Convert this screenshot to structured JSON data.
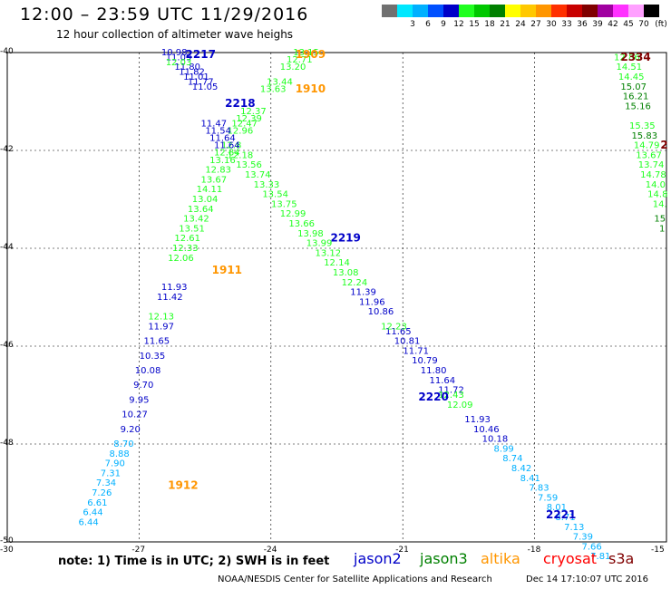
{
  "header": {
    "title": "12:00 – 23:59 UTC 11/29/2016",
    "subtitle": "12 hour collection of altimeter wave heighs"
  },
  "scale": {
    "unit_label": "(ft)",
    "items": [
      {
        "color": "#707070",
        "label": ""
      },
      {
        "color": "#00e8ff",
        "label": "3"
      },
      {
        "color": "#00b0ff",
        "label": "6"
      },
      {
        "color": "#0050ff",
        "label": "9"
      },
      {
        "color": "#0000c8",
        "label": "12"
      },
      {
        "color": "#20ff20",
        "label": "15"
      },
      {
        "color": "#00c800",
        "label": "18"
      },
      {
        "color": "#008000",
        "label": "21"
      },
      {
        "color": "#ffff00",
        "label": "24"
      },
      {
        "color": "#ffc800",
        "label": "27"
      },
      {
        "color": "#ff9600",
        "label": "30"
      },
      {
        "color": "#ff3000",
        "label": "33"
      },
      {
        "color": "#c80000",
        "label": "36"
      },
      {
        "color": "#800000",
        "label": "39"
      },
      {
        "color": "#a000a0",
        "label": "42"
      },
      {
        "color": "#ff30ff",
        "label": "45"
      },
      {
        "color": "#ffa0ff",
        "label": "70"
      },
      {
        "color": "#000000",
        "label": ""
      }
    ]
  },
  "axes": {
    "lat_labels": [
      "-40",
      "-42",
      "-44",
      "-46",
      "-48",
      "-50"
    ],
    "lon_labels": [
      "-30",
      "-27",
      "-24",
      "-21",
      "-18",
      "-15"
    ]
  },
  "map_data": {
    "lon_range": [
      -30,
      -15
    ],
    "lat_range": [
      -50,
      -40
    ],
    "pass_labels": [
      {
        "text": "2217",
        "lon": -25.6,
        "lat": -40.05,
        "color": "#0000c8"
      },
      {
        "text": "1909",
        "lon": -23.1,
        "lat": -40.05,
        "color": "#ff9600"
      },
      {
        "text": "1910",
        "lon": -23.1,
        "lat": -40.75,
        "color": "#ff9600"
      },
      {
        "text": "2218",
        "lon": -24.7,
        "lat": -41.05,
        "color": "#0000c8"
      },
      {
        "text": "2219",
        "lon": -22.3,
        "lat": -43.8,
        "color": "#0000c8"
      },
      {
        "text": "1911",
        "lon": -25.0,
        "lat": -44.45,
        "color": "#ff9600"
      },
      {
        "text": "2220",
        "lon": -20.3,
        "lat": -47.05,
        "color": "#0000c8"
      },
      {
        "text": "1912",
        "lon": -26.0,
        "lat": -48.85,
        "color": "#ff9600"
      },
      {
        "text": "2221",
        "lon": -17.4,
        "lat": -49.45,
        "color": "#0000c8"
      },
      {
        "text": "2334",
        "lon": -15.7,
        "lat": -40.1,
        "color": "#800000"
      },
      {
        "text": "2",
        "lon": -15.05,
        "lat": -41.9,
        "color": "#800000"
      }
    ],
    "tracks": [
      {
        "color": "#0000c8",
        "lon": [
          -26.2,
          -26.1,
          -26.0,
          -25.9,
          -25.8,
          -25.7,
          -25.6,
          -25.5,
          -25.4,
          -25.3,
          -25.2
        ],
        "lat": [
          -40.0,
          -40.1,
          -40.2,
          -40.3,
          -40.4,
          -40.5,
          -40.6,
          -40.7,
          -40.8,
          -40.9,
          -41.0
        ],
        "values": [
          "10.98",
          "11.09",
          "",
          "11.80",
          "11.82",
          "11.01",
          "11.77",
          "11.05",
          "",
          "",
          ""
        ]
      },
      {
        "color": "#20ff20",
        "lon": [
          -26.1,
          -26.0
        ],
        "lat": [
          -40.2,
          -40.3
        ],
        "values": [
          "12.03",
          ""
        ]
      },
      {
        "color": "#20ff20",
        "lon": [
          -23.2,
          -23.35,
          -23.5,
          -23.65,
          -23.8,
          -23.95,
          -24.1,
          -24.25,
          -24.4,
          -24.5
        ],
        "lat": [
          -40.0,
          -40.15,
          -40.3,
          -40.45,
          -40.6,
          -40.75,
          -40.9,
          -41.05,
          -41.2,
          -41.35
        ],
        "values": [
          "13.15",
          "12.71",
          "13.20",
          "",
          "13.44",
          "13.63",
          "",
          "",
          "12.37",
          "12.39"
        ]
      },
      {
        "color": "#20ff20",
        "lon": [
          -24.6,
          -24.7,
          -24.8,
          -24.9,
          -25.0,
          -25.1,
          -25.2,
          -25.3,
          -25.4,
          -25.5,
          -25.6,
          -25.7,
          -25.8,
          -25.9
        ],
        "lat": [
          -41.45,
          -41.6,
          -41.75,
          -41.9,
          -42.05,
          -42.2,
          -42.4,
          -42.6,
          -42.8,
          -43.0,
          -43.2,
          -43.4,
          -43.6,
          -43.8
        ],
        "values": [
          "12.47",
          "12.96",
          "",
          "12.8",
          "12.84",
          "13.16",
          "12.83",
          "13.67",
          "14.11",
          "13.04",
          "13.64",
          "13.42",
          "13.51",
          "12.61"
        ]
      },
      {
        "color": "#20ff20",
        "lon": [
          -25.95,
          -26.05,
          -26.15,
          -26.25
        ],
        "lat": [
          -44.0,
          -44.2,
          -44.4,
          -44.6
        ],
        "values": [
          "12.33",
          "12.06",
          "",
          ""
        ]
      },
      {
        "color": "#0000c8",
        "lon": [
          -26.2,
          -26.3,
          -26.4,
          -26.5,
          -26.6,
          -26.7,
          -26.8,
          -26.9,
          -27.0,
          -27.1
        ],
        "lat": [
          -44.8,
          -45.0,
          -45.3,
          -45.6,
          -45.9,
          -46.2,
          -46.5,
          -46.8,
          -47.1,
          -47.4
        ],
        "values": [
          "11.93",
          "11.42",
          "",
          "11.97",
          "11.65",
          "10.35",
          "10.08",
          "9.70",
          "9.95",
          "10.27"
        ]
      },
      {
        "color": "#20ff20",
        "lon": [
          -26.5
        ],
        "lat": [
          -45.4
        ],
        "values": [
          "12.13"
        ]
      },
      {
        "color": "#0000c8",
        "lon": [
          -27.2,
          -27.3
        ],
        "lat": [
          -47.7,
          -48.0
        ],
        "values": [
          "9.20",
          ""
        ]
      },
      {
        "color": "#00b0ff",
        "lon": [
          -27.35,
          -27.45,
          -27.55,
          -27.65,
          -27.75,
          -27.85,
          -27.95,
          -28.05,
          -28.15,
          -28.25
        ],
        "lat": [
          -48.0,
          -48.2,
          -48.4,
          -48.6,
          -48.8,
          -49.0,
          -49.2,
          -49.4,
          -49.6,
          -49.8
        ],
        "values": [
          "8.70",
          "8.88",
          "7.90",
          "7.31",
          "7.34",
          "7.26",
          "6.61",
          "6.44",
          "6.44",
          ""
        ]
      },
      {
        "color": "#0000c8",
        "lon": [
          -25.3,
          -25.2,
          -25.1,
          -25.0
        ],
        "lat": [
          -41.45,
          -41.6,
          -41.75,
          -41.9
        ],
        "values": [
          "11.47",
          "11.54",
          "11.64",
          "11.64"
        ]
      },
      {
        "color": "#20ff20",
        "lon": [
          -24.7,
          -24.5,
          -24.3,
          -24.1,
          -23.9,
          -23.7,
          -23.5,
          -23.3,
          -23.1,
          -22.9,
          -22.7,
          -22.5,
          -22.3,
          -22.1
        ],
        "lat": [
          -42.1,
          -42.3,
          -42.5,
          -42.7,
          -42.9,
          -43.1,
          -43.3,
          -43.5,
          -43.7,
          -43.9,
          -44.1,
          -44.3,
          -44.5,
          -44.7
        ],
        "values": [
          "12.18",
          "13.56",
          "13.74",
          "13.33",
          "13.54",
          "13.75",
          "12.99",
          "13.66",
          "13.98",
          "13.99",
          "13.12",
          "12.14",
          "13.08",
          "12.24"
        ]
      },
      {
        "color": "#0000c8",
        "lon": [
          -21.9,
          -21.7,
          -21.5,
          -21.3,
          -21.1,
          -20.9,
          -20.7,
          -20.5
        ],
        "lat": [
          -44.9,
          -45.1,
          -45.3,
          -45.5,
          -45.7,
          -45.9,
          -46.1,
          -46.3
        ],
        "values": [
          "11.39",
          "11.96",
          "10.86",
          "",
          "11.65",
          "10.81",
          "11.71",
          "10.79"
        ]
      },
      {
        "color": "#20ff20",
        "lon": [
          -21.2
        ],
        "lat": [
          -45.6
        ],
        "values": [
          "12.23"
        ]
      },
      {
        "color": "#0000c8",
        "lon": [
          -20.3,
          -20.1,
          -19.9,
          -19.7,
          -19.5,
          -19.3,
          -19.1
        ],
        "lat": [
          -46.5,
          -46.7,
          -46.9,
          -47.1,
          -47.3,
          -47.5,
          -47.7
        ],
        "values": [
          "11.80",
          "11.64",
          "11.72",
          "",
          "",
          "11.93",
          "10.46"
        ]
      },
      {
        "color": "#20ff20",
        "lon": [
          -19.9,
          -19.7
        ],
        "lat": [
          -47.0,
          -47.2
        ],
        "values": [
          "12.43",
          "12.09"
        ]
      },
      {
        "color": "#0000c8",
        "lon": [
          -18.9
        ],
        "lat": [
          -47.9
        ],
        "values": [
          "10.18"
        ]
      },
      {
        "color": "#00b0ff",
        "lon": [
          -18.7,
          -18.5,
          -18.3,
          -18.1,
          -17.9,
          -17.7,
          -17.5,
          -17.3,
          -17.1,
          -16.9,
          -16.7,
          -16.5
        ],
        "lat": [
          -48.1,
          -48.3,
          -48.5,
          -48.7,
          -48.9,
          -49.1,
          -49.3,
          -49.5,
          -49.7,
          -49.9,
          -50.1,
          -50.3
        ],
        "values": [
          "8.99",
          "8.74",
          "8.42",
          "8.41",
          "7.83",
          "7.59",
          "8.01",
          "8.71",
          "7.13",
          "7.39",
          "7.66",
          "7.81"
        ]
      },
      {
        "color": "#20ff20",
        "lon": [
          -15.9,
          -15.85,
          -15.8,
          -15.75,
          -15.7,
          -15.65,
          -15.6,
          -15.55,
          -15.5,
          -15.45,
          -15.4,
          -15.35,
          -15.3,
          -15.25,
          -15.2,
          -15.15
        ],
        "lat": [
          -40.1,
          -40.3,
          -40.5,
          -40.7,
          -40.9,
          -41.1,
          -41.3,
          -41.5,
          -41.7,
          -41.9,
          -42.1,
          -42.3,
          -42.5,
          -42.7,
          -42.9,
          -43.1
        ],
        "values": [
          "12.86",
          "14.51",
          "14.45",
          "",
          "",
          "",
          "",
          "15.35",
          "",
          "14.79",
          "13.67",
          "13.74",
          "14.78",
          "14.0",
          "14.8",
          "14."
        ]
      },
      {
        "color": "#008000",
        "lon": [
          -15.75,
          -15.7,
          -15.65,
          -15.6,
          -15.5,
          -15.15,
          -15.1
        ],
        "lat": [
          -40.7,
          -40.9,
          -41.1,
          -41.3,
          -41.7,
          -43.4,
          -43.6
        ],
        "values": [
          "15.07",
          "16.21",
          "15.16",
          "",
          "15.83",
          "15",
          "1"
        ]
      }
    ]
  },
  "footer": {
    "note": "note:  1) Time is in UTC;  2) SWH is in feet",
    "satellites": [
      {
        "name": "jason2",
        "color": "#0000c8"
      },
      {
        "name": "jason3",
        "color": "#008000"
      },
      {
        "name": "altika",
        "color": "#ff9600"
      },
      {
        "name": "cryosat",
        "color": "#ff0000"
      },
      {
        "name": "s3a",
        "color": "#800000"
      }
    ],
    "credit": "NOAA/NESDIS Center for Satellite Applications and Research",
    "timestamp": "Dec 14 17:10:07 UTC 2016"
  }
}
